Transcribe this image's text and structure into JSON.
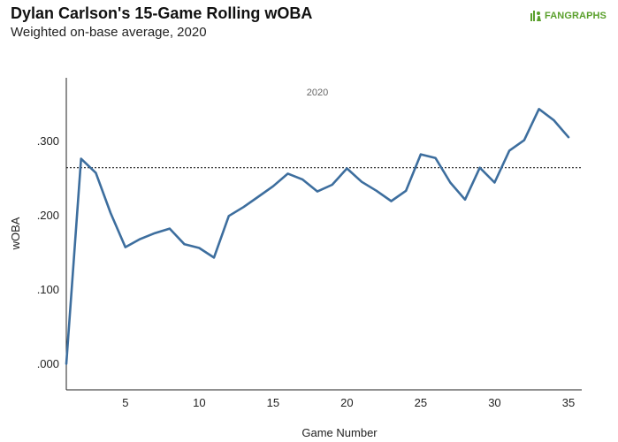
{
  "header": {
    "title": "Dylan Carlson's 15-Game Rolling wOBA",
    "subtitle": "Weighted on-base average, 2020",
    "logo_text_fan": "FAN",
    "logo_text_graphs": "GRAPHS"
  },
  "colors": {
    "line": "#3d6e9e",
    "reference_line": "#222222",
    "axis": "#222222",
    "brand": "#5aa02c"
  },
  "chart_data": {
    "type": "line",
    "title": "Dylan Carlson's 15-Game Rolling wOBA",
    "subtitle": "Weighted on-base average, 2020",
    "xlabel": "Game Number",
    "ylabel": "wOBA",
    "annotation": "2020",
    "xlim": [
      1,
      35.9
    ],
    "ylim": [
      -0.035,
      0.385
    ],
    "x_ticks": [
      5,
      10,
      15,
      20,
      25,
      30,
      35
    ],
    "x_tick_labels": [
      "5",
      "10",
      "15",
      "20",
      "25",
      "30",
      "35"
    ],
    "y_ticks": [
      0.0,
      0.1,
      0.2,
      0.3
    ],
    "y_tick_labels": [
      ".000",
      ".100",
      ".200",
      ".300"
    ],
    "grid": false,
    "reference_line": {
      "y": 0.264,
      "style": "dotted"
    },
    "series": [
      {
        "x": [
          1,
          2,
          3,
          4,
          5,
          6,
          7,
          8,
          9,
          10,
          11,
          12,
          13,
          14,
          15,
          16,
          17,
          18,
          19,
          20,
          21,
          22,
          23,
          24,
          25,
          26,
          27,
          28,
          29,
          30,
          31,
          32,
          33,
          34,
          35
        ],
        "values": [
          0.0,
          0.276,
          0.257,
          0.203,
          0.157,
          0.168,
          0.176,
          0.182,
          0.161,
          0.156,
          0.143,
          0.199,
          0.211,
          0.225,
          0.239,
          0.256,
          0.248,
          0.232,
          0.241,
          0.263,
          0.245,
          0.233,
          0.219,
          0.233,
          0.282,
          0.277,
          0.244,
          0.221,
          0.264,
          0.244,
          0.287,
          0.301,
          0.343,
          0.328,
          0.305
        ]
      }
    ]
  }
}
